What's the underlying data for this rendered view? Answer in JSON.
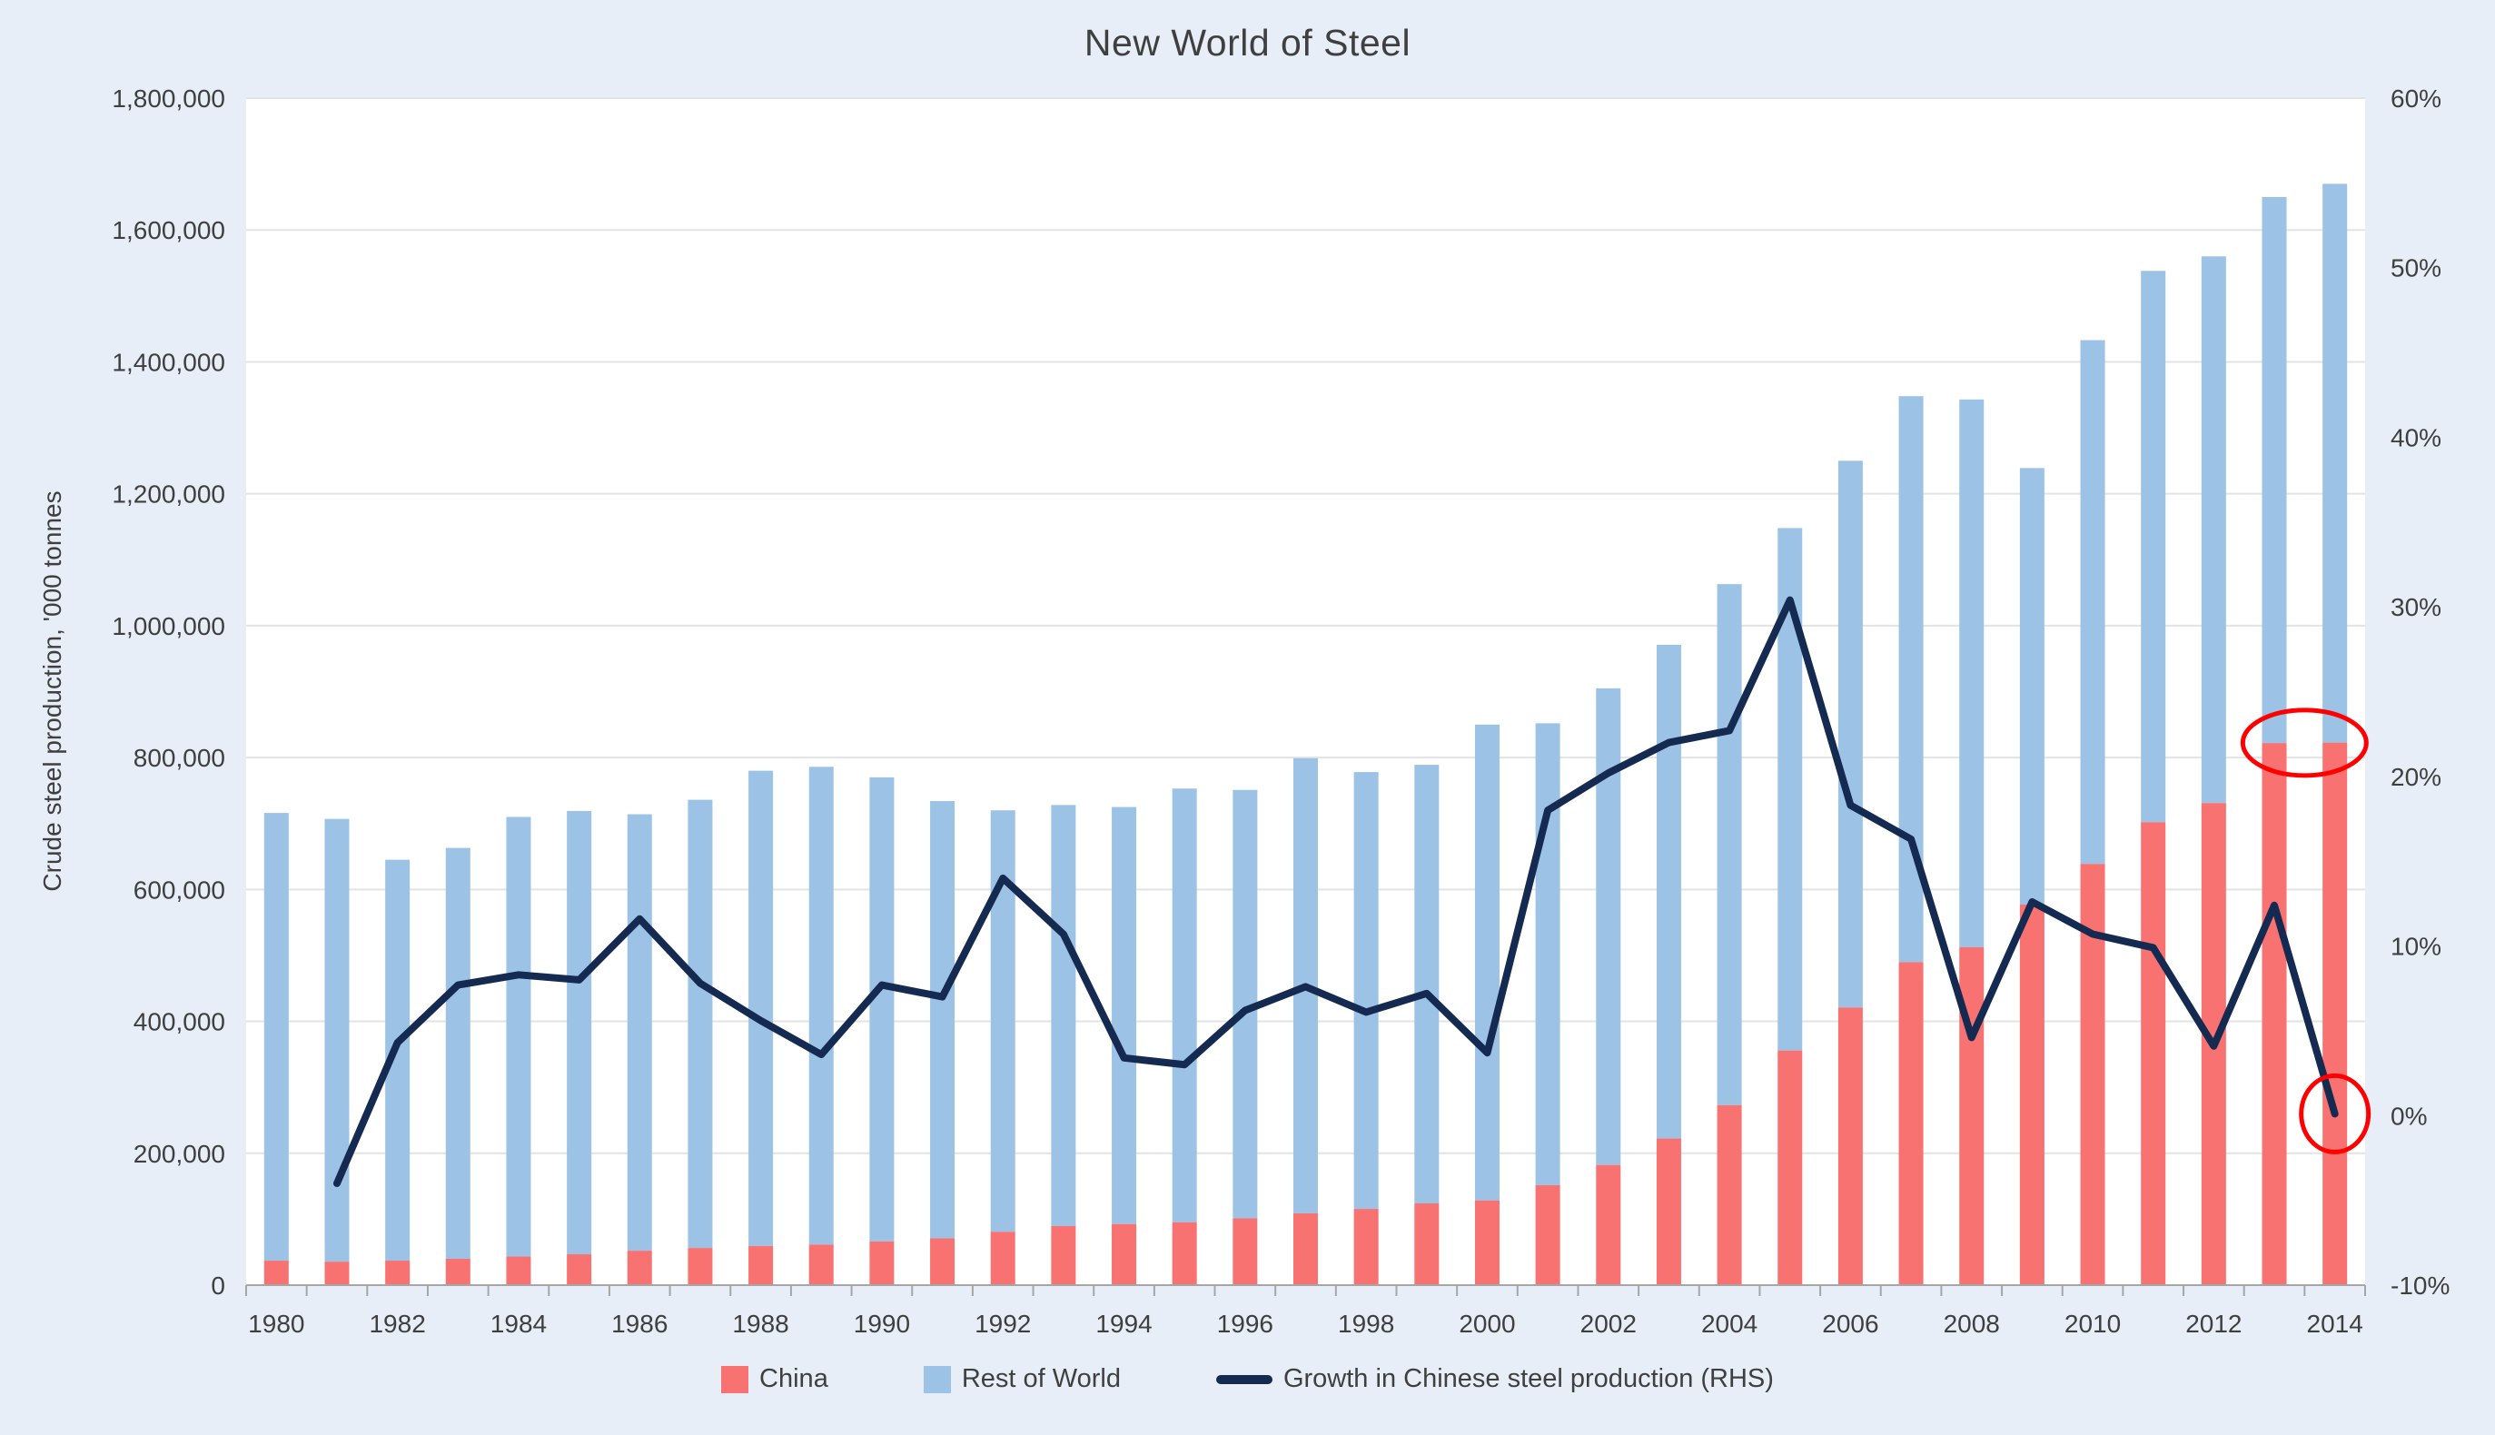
{
  "title": "New World of Steel",
  "y_axis_left": {
    "title": "Crude steel production, '000 tonnes",
    "tick_labels": [
      "0",
      "200,000",
      "400,000",
      "600,000",
      "800,000",
      "1,000,000",
      "1,200,000",
      "1,400,000",
      "1,600,000",
      "1,800,000"
    ]
  },
  "y_axis_right": {
    "tick_labels": [
      "-10%",
      "0%",
      "10%",
      "20%",
      "30%",
      "40%",
      "50%",
      "60%"
    ]
  },
  "legend": {
    "items": [
      {
        "label": "China",
        "swatch": "square",
        "color": "#f97272"
      },
      {
        "label": "Rest of World",
        "swatch": "square",
        "color": "#9cc3e6"
      },
      {
        "label": "Growth in Chinese steel production (RHS)",
        "swatch": "line",
        "color": "#152a50"
      }
    ]
  },
  "colors": {
    "background": "#e7eef7",
    "plot_background": "#ffffff",
    "gridline": "#e3e3e3",
    "axis_line": "#a6a6a6",
    "text": "#3f3f3f",
    "annotation": "#ff0000"
  },
  "chart_data": {
    "type": "bar",
    "subtype": "stacked-bars-with-secondary-axis-line",
    "title": "New World of Steel",
    "xlabel": "",
    "ylabel_left": "Crude steel production, '000 tonnes",
    "ylim_left": [
      0,
      1800000
    ],
    "ylim_right_pct": [
      -10,
      60
    ],
    "grid": "horizontal",
    "legend_position": "bottom",
    "x": [
      1980,
      1981,
      1982,
      1983,
      1984,
      1985,
      1986,
      1987,
      1988,
      1989,
      1990,
      1991,
      1992,
      1993,
      1994,
      1995,
      1996,
      1997,
      1998,
      1999,
      2000,
      2001,
      2002,
      2003,
      2004,
      2005,
      2006,
      2007,
      2008,
      2009,
      2010,
      2011,
      2012,
      2013,
      2014
    ],
    "x_tick_label_interval": 2,
    "series": [
      {
        "name": "China",
        "axis": "left",
        "type": "bar-stacked",
        "color": "#f97272",
        "values": [
          37120,
          35640,
          37160,
          40020,
          43340,
          46790,
          52210,
          56280,
          59430,
          61590,
          66350,
          71000,
          80940,
          89560,
          92610,
          95360,
          101240,
          108910,
          115590,
          123950,
          128500,
          151630,
          182250,
          222340,
          272800,
          355790,
          421020,
          489710,
          512340,
          577070,
          638740,
          702000,
          731040,
          822000,
          822700
        ]
      },
      {
        "name": "Rest of World",
        "axis": "left",
        "type": "bar-stacked",
        "color": "#9cc3e6",
        "values": [
          678880,
          671360,
          607840,
          622980,
          666660,
          672210,
          661790,
          679720,
          720570,
          724410,
          703650,
          663000,
          639060,
          638440,
          632390,
          657640,
          649760,
          690090,
          662410,
          665050,
          721500,
          700370,
          722750,
          748660,
          790200,
          792210,
          828980,
          858290,
          830660,
          661930,
          794260,
          836000,
          828960,
          828000,
          847300
        ]
      },
      {
        "name": "Growth in Chinese steel production (RHS)",
        "axis": "right",
        "type": "line",
        "color": "#152a50",
        "values_pct": [
          null,
          -4.0,
          4.3,
          7.7,
          8.3,
          8.0,
          11.6,
          7.8,
          5.6,
          3.6,
          7.7,
          7.0,
          14.0,
          10.7,
          3.4,
          3.0,
          6.2,
          7.6,
          6.1,
          7.2,
          3.7,
          18.0,
          20.2,
          22.0,
          22.7,
          30.4,
          18.3,
          16.3,
          4.6,
          12.6,
          10.7,
          9.9,
          4.1,
          12.4,
          0.1
        ]
      }
    ],
    "stacked_totals": [
      716000,
      707000,
      645000,
      663000,
      710000,
      719000,
      714000,
      736000,
      780000,
      786000,
      770000,
      734000,
      720000,
      728000,
      725000,
      753000,
      751000,
      799000,
      778000,
      789000,
      850000,
      852000,
      905000,
      971000,
      1063000,
      1148000,
      1250000,
      1348000,
      1343000,
      1239000,
      1433000,
      1538000,
      1560000,
      1650000,
      1670000
    ],
    "annotations": [
      {
        "type": "ellipse",
        "color": "#ff0000",
        "axis": "left",
        "years": [
          2013,
          2014
        ],
        "value": 822350,
        "note": "China bar tops 2013 and 2014 at ~822,000"
      },
      {
        "type": "ellipse",
        "color": "#ff0000",
        "axis": "right",
        "years": [
          2014
        ],
        "value_pct": 0.1,
        "note": "2014 Chinese growth circled at ~0%"
      }
    ]
  }
}
